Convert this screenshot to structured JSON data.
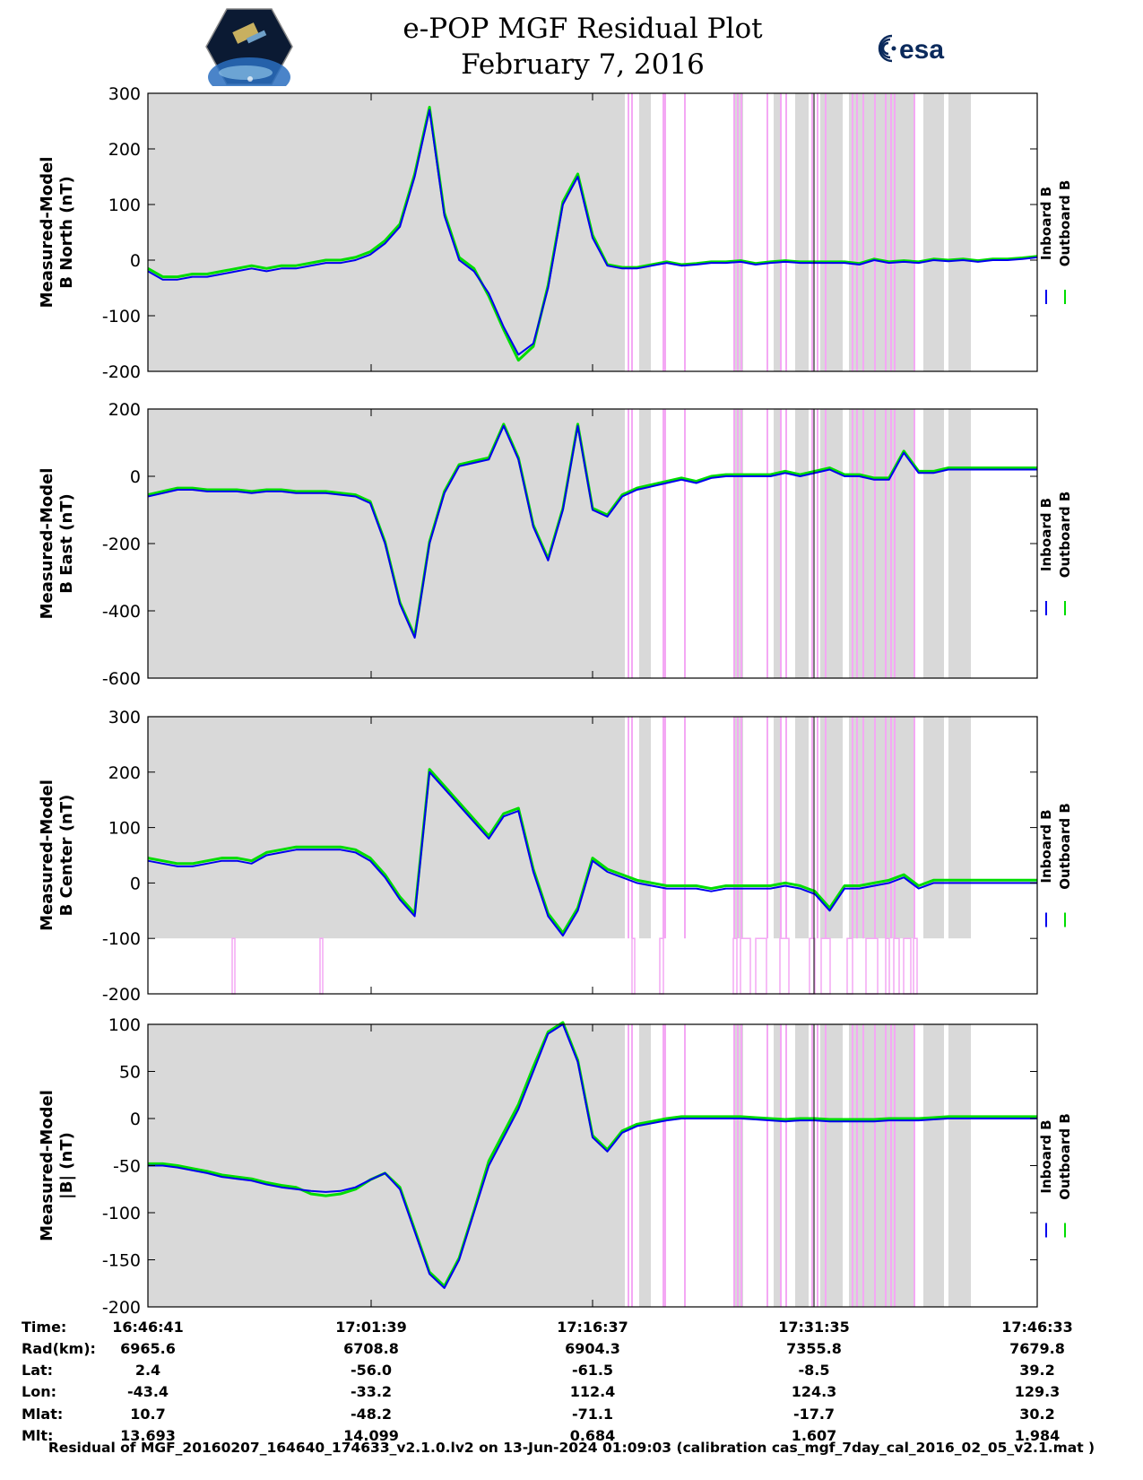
{
  "title": {
    "line1": "e-POP MGF Residual Plot",
    "line2": "February 7, 2016"
  },
  "logos": {
    "left": "cassiope-mission-logo",
    "right_text": "esa"
  },
  "colors": {
    "inboard": "#0000ee",
    "outboard": "#00dd00",
    "shade": "#d9d9d9",
    "magenta": "#f4a8f4"
  },
  "legend": {
    "inboard": "Inboard B",
    "outboard": "Outboard B"
  },
  "chart_data": [
    {
      "type": "line",
      "ylabel_line1": "Measured-Model",
      "ylabel_line2": "B North (nT)",
      "ylim": [
        -200,
        300
      ],
      "yticks": [
        300,
        200,
        100,
        0,
        -100,
        -200
      ],
      "shade_ylim": [
        -200,
        300
      ],
      "x": [
        0,
        1,
        2,
        3,
        4,
        5,
        6,
        7,
        8,
        9,
        10,
        11,
        12,
        13,
        14,
        15,
        16,
        17,
        18,
        19,
        20,
        21,
        22,
        23,
        24,
        25,
        26,
        27,
        28,
        29,
        30,
        31,
        32,
        33,
        34,
        35,
        36,
        37,
        38,
        39,
        40,
        41,
        42,
        43,
        44,
        45,
        46,
        47,
        48,
        49,
        50,
        51,
        52,
        53,
        54,
        55,
        56,
        57,
        58,
        59,
        60
      ],
      "series": [
        {
          "name": "Inboard B",
          "values": [
            -20,
            -35,
            -35,
            -30,
            -30,
            -25,
            -20,
            -15,
            -20,
            -15,
            -15,
            -10,
            -5,
            -5,
            0,
            10,
            30,
            60,
            150,
            270,
            80,
            0,
            -20,
            -60,
            -120,
            -170,
            -150,
            -50,
            100,
            150,
            40,
            -10,
            -15,
            -15,
            -10,
            -5,
            -10,
            -8,
            -5,
            -5,
            -3,
            -8,
            -5,
            -3,
            -5,
            -5,
            -5,
            -5,
            -8,
            0,
            -5,
            -3,
            -5,
            0,
            -2,
            0,
            -3,
            0,
            0,
            2,
            5
          ]
        },
        {
          "name": "Outboard B",
          "values": [
            -15,
            -30,
            -30,
            -25,
            -25,
            -20,
            -15,
            -10,
            -15,
            -10,
            -10,
            -5,
            0,
            0,
            5,
            15,
            35,
            65,
            155,
            275,
            85,
            5,
            -15,
            -65,
            -125,
            -180,
            -155,
            -45,
            105,
            155,
            45,
            -8,
            -13,
            -13,
            -8,
            -3,
            -8,
            -6,
            -3,
            -3,
            -1,
            -6,
            -3,
            -1,
            -3,
            -3,
            -3,
            -3,
            -6,
            2,
            -3,
            -1,
            -3,
            2,
            0,
            2,
            -1,
            2,
            2,
            4,
            7
          ]
        }
      ]
    },
    {
      "type": "line",
      "ylabel_line1": "Measured-Model",
      "ylabel_line2": "B East (nT)",
      "ylim": [
        -600,
        200
      ],
      "yticks": [
        200,
        0,
        -200,
        -400,
        -600
      ],
      "shade_ylim": [
        -600,
        200
      ],
      "x": [
        0,
        1,
        2,
        3,
        4,
        5,
        6,
        7,
        8,
        9,
        10,
        11,
        12,
        13,
        14,
        15,
        16,
        17,
        18,
        19,
        20,
        21,
        22,
        23,
        24,
        25,
        26,
        27,
        28,
        29,
        30,
        31,
        32,
        33,
        34,
        35,
        36,
        37,
        38,
        39,
        40,
        41,
        42,
        43,
        44,
        45,
        46,
        47,
        48,
        49,
        50,
        51,
        52,
        53,
        54,
        55,
        56,
        57,
        58,
        59,
        60
      ],
      "series": [
        {
          "name": "Inboard B",
          "values": [
            -60,
            -50,
            -40,
            -40,
            -45,
            -45,
            -45,
            -50,
            -45,
            -45,
            -50,
            -50,
            -50,
            -55,
            -60,
            -80,
            -200,
            -380,
            -480,
            -200,
            -50,
            30,
            40,
            50,
            150,
            50,
            -150,
            -250,
            -100,
            150,
            -100,
            -120,
            -60,
            -40,
            -30,
            -20,
            -10,
            -20,
            -5,
            0,
            0,
            0,
            0,
            10,
            0,
            10,
            20,
            0,
            0,
            -10,
            -10,
            70,
            10,
            10,
            20,
            20,
            20,
            20,
            20,
            20,
            20
          ]
        },
        {
          "name": "Outboard B",
          "values": [
            -55,
            -45,
            -35,
            -35,
            -40,
            -40,
            -40,
            -45,
            -40,
            -40,
            -45,
            -45,
            -45,
            -50,
            -55,
            -75,
            -195,
            -375,
            -475,
            -195,
            -45,
            35,
            45,
            55,
            155,
            55,
            -145,
            -245,
            -95,
            155,
            -95,
            -115,
            -55,
            -35,
            -25,
            -15,
            -5,
            -15,
            0,
            5,
            5,
            5,
            5,
            15,
            5,
            15,
            25,
            5,
            5,
            -5,
            -5,
            75,
            15,
            15,
            25,
            25,
            25,
            25,
            25,
            25,
            25
          ]
        }
      ]
    },
    {
      "type": "line",
      "ylabel_line1": "Measured-Model",
      "ylabel_line2": "B Center (nT)",
      "ylim": [
        -200,
        300
      ],
      "yticks": [
        300,
        200,
        100,
        0,
        -100,
        -200
      ],
      "shade_ylim": [
        -100,
        300
      ],
      "x": [
        0,
        1,
        2,
        3,
        4,
        5,
        6,
        7,
        8,
        9,
        10,
        11,
        12,
        13,
        14,
        15,
        16,
        17,
        18,
        19,
        20,
        21,
        22,
        23,
        24,
        25,
        26,
        27,
        28,
        29,
        30,
        31,
        32,
        33,
        34,
        35,
        36,
        37,
        38,
        39,
        40,
        41,
        42,
        43,
        44,
        45,
        46,
        47,
        48,
        49,
        50,
        51,
        52,
        53,
        54,
        55,
        56,
        57,
        58,
        59,
        60
      ],
      "series": [
        {
          "name": "Inboard B",
          "values": [
            40,
            35,
            30,
            30,
            35,
            40,
            40,
            35,
            50,
            55,
            60,
            60,
            60,
            60,
            55,
            40,
            10,
            -30,
            -60,
            200,
            170,
            140,
            110,
            80,
            120,
            130,
            20,
            -60,
            -95,
            -50,
            40,
            20,
            10,
            0,
            -5,
            -10,
            -10,
            -10,
            -15,
            -10,
            -10,
            -10,
            -10,
            -5,
            -10,
            -20,
            -50,
            -10,
            -10,
            -5,
            0,
            10,
            -10,
            0,
            0,
            0,
            0,
            0,
            0,
            0,
            0
          ]
        },
        {
          "name": "Outboard B",
          "values": [
            45,
            40,
            35,
            35,
            40,
            45,
            45,
            40,
            55,
            60,
            65,
            65,
            65,
            65,
            60,
            45,
            15,
            -25,
            -55,
            205,
            175,
            145,
            115,
            85,
            125,
            135,
            25,
            -55,
            -90,
            -45,
            45,
            25,
            15,
            5,
            0,
            -5,
            -5,
            -5,
            -10,
            -5,
            -5,
            -5,
            -5,
            0,
            -5,
            -15,
            -45,
            -5,
            -5,
            0,
            5,
            15,
            -5,
            5,
            5,
            5,
            5,
            5,
            5,
            5,
            5
          ]
        }
      ]
    },
    {
      "type": "line",
      "ylabel_line1": "Measured-Model",
      "ylabel_line2": "|B| (nT)",
      "ylim": [
        -200,
        100
      ],
      "yticks": [
        100,
        50,
        0,
        -50,
        -100,
        -150,
        -200
      ],
      "shade_ylim": [
        -200,
        100
      ],
      "x": [
        0,
        1,
        2,
        3,
        4,
        5,
        6,
        7,
        8,
        9,
        10,
        11,
        12,
        13,
        14,
        15,
        16,
        17,
        18,
        19,
        20,
        21,
        22,
        23,
        24,
        25,
        26,
        27,
        28,
        29,
        30,
        31,
        32,
        33,
        34,
        35,
        36,
        37,
        38,
        39,
        40,
        41,
        42,
        43,
        44,
        45,
        46,
        47,
        48,
        49,
        50,
        51,
        52,
        53,
        54,
        55,
        56,
        57,
        58,
        59,
        60
      ],
      "series": [
        {
          "name": "Inboard B",
          "values": [
            -50,
            -50,
            -52,
            -55,
            -58,
            -62,
            -64,
            -66,
            -70,
            -73,
            -75,
            -77,
            -78,
            -77,
            -73,
            -65,
            -58,
            -75,
            -120,
            -165,
            -180,
            -150,
            -100,
            -50,
            -20,
            10,
            50,
            90,
            100,
            60,
            -20,
            -35,
            -15,
            -8,
            -5,
            -2,
            0,
            0,
            0,
            0,
            0,
            -1,
            -2,
            -3,
            -2,
            -2,
            -3,
            -3,
            -3,
            -3,
            -2,
            -2,
            -2,
            -1,
            0,
            0,
            0,
            0,
            0,
            0,
            0
          ]
        },
        {
          "name": "Outboard B",
          "values": [
            -48,
            -48,
            -50,
            -53,
            -56,
            -60,
            -62,
            -64,
            -68,
            -71,
            -73,
            -80,
            -82,
            -80,
            -75,
            -65,
            -58,
            -73,
            -118,
            -163,
            -178,
            -148,
            -98,
            -45,
            -15,
            15,
            55,
            92,
            102,
            62,
            -18,
            -33,
            -13,
            -6,
            -3,
            0,
            2,
            2,
            2,
            2,
            2,
            1,
            0,
            -1,
            0,
            0,
            -1,
            -1,
            -1,
            -1,
            0,
            0,
            0,
            1,
            2,
            2,
            2,
            2,
            2,
            2,
            2
          ]
        }
      ]
    }
  ],
  "ephemeris": {
    "labels": [
      "Time:",
      "Rad(km):",
      "Lat:",
      "Lon:",
      "Mlat:",
      "Mlt:"
    ],
    "columns": [
      [
        "16:46:41",
        "6965.6",
        "2.4",
        "-43.4",
        "10.7",
        "13.693"
      ],
      [
        "17:01:39",
        "6708.8",
        "-56.0",
        "-33.2",
        "-48.2",
        "14.099"
      ],
      [
        "17:16:37",
        "6904.3",
        "-61.5",
        "112.4",
        "-71.1",
        "0.684"
      ],
      [
        "17:31:35",
        "7355.8",
        "-8.5",
        "124.3",
        "-17.7",
        "1.607"
      ],
      [
        "17:46:33",
        "7679.8",
        "39.2",
        "129.3",
        "30.2",
        "1.984"
      ]
    ]
  },
  "footer": "Residual of MGF_20160207_164640_174633_v2.1.0.lv2 on 13-Jun-2024 01:09:03 (calibration cas_mgf_7day_cal_2016_02_05_v2.1.mat )"
}
